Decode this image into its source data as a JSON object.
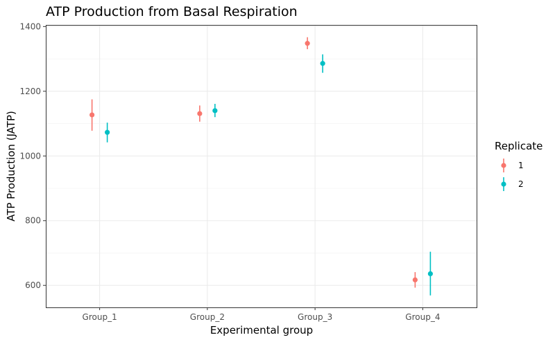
{
  "chart_data": {
    "type": "scatter",
    "title": "ATP Production from Basal Respiration",
    "xlabel": "Experimental group",
    "ylabel": "ATP Production (JATP)",
    "categories": [
      "Group_1",
      "Group_2",
      "Group_3",
      "Group_4"
    ],
    "ylim": [
      532,
      1405
    ],
    "yticks": [
      600,
      800,
      1000,
      1200,
      1400
    ],
    "grid": true,
    "legend": {
      "title": "Replicate",
      "position": "right"
    },
    "series": [
      {
        "name": "1",
        "color": "#F8766D",
        "values": [
          1127,
          1131,
          1348,
          617
        ],
        "lower": [
          1078,
          1106,
          1330,
          593
        ],
        "upper": [
          1175,
          1156,
          1367,
          641
        ]
      },
      {
        "name": "2",
        "color": "#00BFC4",
        "values": [
          1073,
          1140,
          1286,
          636
        ],
        "lower": [
          1042,
          1120,
          1257,
          569
        ],
        "upper": [
          1103,
          1161,
          1314,
          704
        ]
      }
    ]
  }
}
